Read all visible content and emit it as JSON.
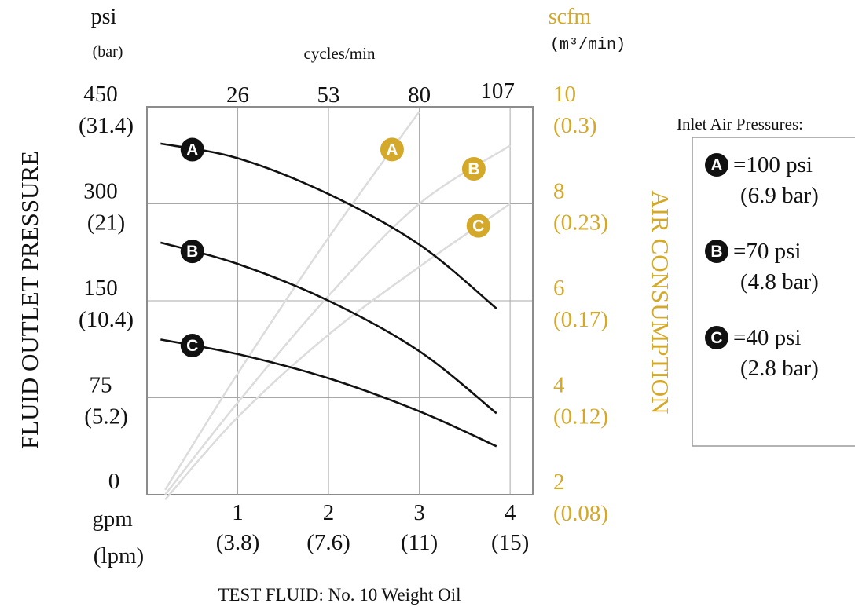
{
  "chart_data": {
    "type": "line",
    "title": "",
    "x_axis": {
      "unit": "gpm",
      "unit_metric": "(lpm)",
      "range": [
        0,
        4.25
      ],
      "ticks": [
        {
          "value": 1,
          "label": "1",
          "metric": "(3.8)"
        },
        {
          "value": 2,
          "label": "2",
          "metric": "(7.6)"
        },
        {
          "value": 3,
          "label": "3",
          "metric": "(11)"
        },
        {
          "value": 4,
          "label": "4",
          "metric": "(15)"
        }
      ]
    },
    "x2_axis": {
      "label": "cycles/min",
      "ticks": [
        {
          "value": 1,
          "label": "26"
        },
        {
          "value": 2,
          "label": "53"
        },
        {
          "value": 3,
          "label": "80"
        },
        {
          "value": 4,
          "label": "107"
        }
      ]
    },
    "y_axis": {
      "title": "FLUID OUTLET PRESSURE",
      "unit": "psi",
      "unit_metric": "(bar)",
      "tick_levels": [
        0,
        1,
        2,
        3,
        4
      ],
      "ticks": [
        {
          "level": 0,
          "label": "0",
          "metric": ""
        },
        {
          "level": 1,
          "label": "75",
          "metric": "(5.2)"
        },
        {
          "level": 2,
          "label": "150",
          "metric": "(10.4)"
        },
        {
          "level": 3,
          "label": "300",
          "metric": "(21)"
        },
        {
          "level": 4,
          "label": "450",
          "metric": "(31.4)"
        }
      ]
    },
    "y2_axis": {
      "title": "AIR CONSUMPTION",
      "unit": "scfm",
      "unit_metric": "(m³/min)",
      "range": [
        2,
        10
      ],
      "ticks": [
        {
          "value": 2,
          "label": "2",
          "metric": "(0.08)"
        },
        {
          "value": 4,
          "label": "4",
          "metric": "(0.12)"
        },
        {
          "value": 6,
          "label": "6",
          "metric": "(0.17)"
        },
        {
          "value": 8,
          "label": "8",
          "metric": "(0.23)"
        },
        {
          "value": 10,
          "label": "10",
          "metric": "(0.3)"
        }
      ]
    },
    "grid": true,
    "pressure_series": [
      {
        "name": "A",
        "points": [
          [
            0.15,
            3.62
          ],
          [
            1,
            3.47
          ],
          [
            2,
            3.1
          ],
          [
            3,
            2.58
          ],
          [
            3.85,
            1.92
          ]
        ]
      },
      {
        "name": "B",
        "points": [
          [
            0.15,
            2.6
          ],
          [
            1,
            2.38
          ],
          [
            2,
            2.0
          ],
          [
            3,
            1.48
          ],
          [
            3.85,
            0.84
          ]
        ]
      },
      {
        "name": "C",
        "points": [
          [
            0.15,
            1.6
          ],
          [
            1,
            1.45
          ],
          [
            2,
            1.2
          ],
          [
            3,
            0.86
          ],
          [
            3.85,
            0.5
          ]
        ]
      }
    ],
    "air_series": [
      {
        "name": "A",
        "points": [
          [
            0.2,
            2.1
          ],
          [
            1,
            4.5
          ],
          [
            2,
            7.3
          ],
          [
            3,
            9.9
          ]
        ]
      },
      {
        "name": "B",
        "points": [
          [
            0.2,
            2.0
          ],
          [
            1,
            3.9
          ],
          [
            2,
            6.1
          ],
          [
            3,
            8.0
          ],
          [
            4,
            9.2
          ]
        ]
      },
      {
        "name": "C",
        "points": [
          [
            0.2,
            1.9
          ],
          [
            1,
            3.6
          ],
          [
            2,
            5.3
          ],
          [
            3,
            6.7
          ],
          [
            4,
            8.0
          ]
        ]
      }
    ],
    "pressure_marker_x": 0.5,
    "air_marker_x": {
      "A": 2.7,
      "B": 3.6,
      "C": 3.65
    },
    "legend": {
      "title": "Inlet Air Pressures:",
      "placement": "right",
      "items": [
        {
          "id": "A",
          "label": "=100 psi",
          "metric": "(6.9 bar)"
        },
        {
          "id": "B",
          "label": "=70 psi",
          "metric": "(4.8 bar)"
        },
        {
          "id": "C",
          "label": "=40 psi",
          "metric": "(2.8 bar)"
        }
      ]
    },
    "footnote": "TEST FLUID: No. 10 Weight Oil",
    "colors": {
      "pressure_line": "#111111",
      "air_line": "#dcdcdc",
      "air_axis": "#d4a92a",
      "grid": "#a8a8a8",
      "frame": "#8c8c8c"
    }
  }
}
